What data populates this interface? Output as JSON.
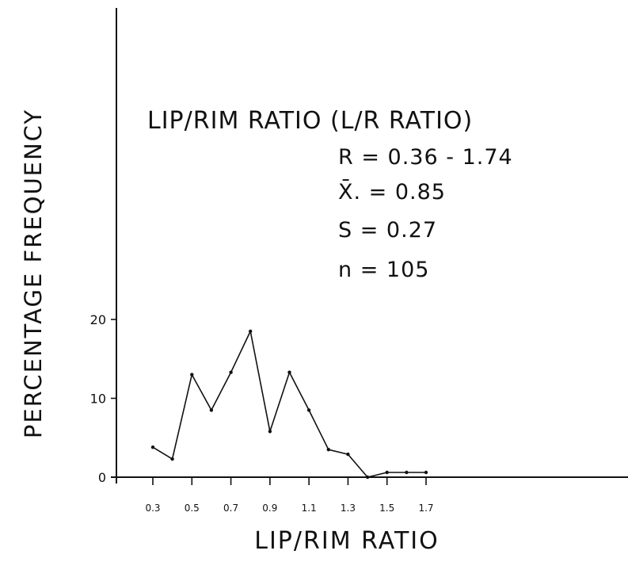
{
  "chart_data": {
    "type": "line",
    "title": "LIP/RIM RATIO (L/R RATIO)",
    "stats": [
      "R = 0.36 - 1.74",
      "X̄. = 0.85",
      "S = 0.27",
      "n = 105"
    ],
    "xlabel": "LIP/RIM RATIO",
    "ylabel": "PERCENTAGE FREQUENCY",
    "x_tick_labels": [
      "0.3",
      "0.5",
      "0.7",
      "0.9",
      "1.1",
      "1.3",
      "1.5",
      "1.7"
    ],
    "y_tick_labels": [
      "0",
      "10",
      "20"
    ],
    "xlim": [
      0.3,
      1.7
    ],
    "ylim": [
      0,
      20
    ],
    "x": [
      0.3,
      0.4,
      0.5,
      0.6,
      0.7,
      0.8,
      0.9,
      1.0,
      1.1,
      1.2,
      1.3,
      1.4,
      1.5,
      1.6,
      1.7
    ],
    "series": [
      {
        "values": [
          3.8,
          2.3,
          13.0,
          8.5,
          13.3,
          18.5,
          5.8,
          13.3,
          8.5,
          3.5,
          2.9,
          0.0,
          0.6,
          0.6,
          0.6
        ]
      }
    ],
    "grid": false,
    "legend": "none"
  }
}
